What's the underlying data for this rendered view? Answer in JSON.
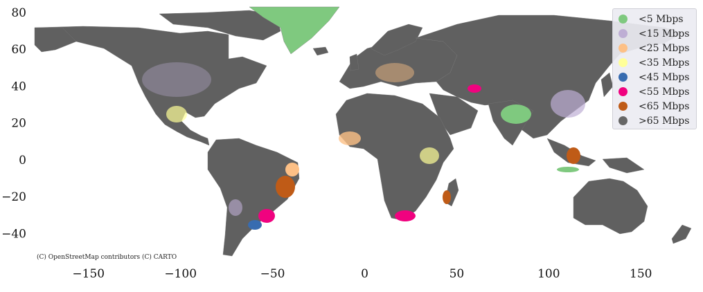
{
  "map": {
    "attribution": "(C) OpenStreetMap contributors (C) CARTO",
    "x_axis": {
      "ticks": [
        -150,
        -100,
        -50,
        0,
        50,
        100,
        150
      ],
      "labels": [
        "−150",
        "−100",
        "−50",
        "0",
        "50",
        "100",
        "150"
      ],
      "range": [
        -180,
        180
      ]
    },
    "y_axis": {
      "ticks": [
        80,
        60,
        40,
        20,
        0,
        -20,
        -40
      ],
      "labels": [
        "80",
        "60",
        "40",
        "20",
        "0",
        "−20",
        "−40"
      ],
      "range": [
        -56,
        83
      ]
    },
    "land_color": "#606060",
    "legend": {
      "placement": "top-right",
      "items": [
        {
          "label": "<5 Mbps",
          "color": "#7fc97f"
        },
        {
          "label": "<15 Mbps",
          "color": "#beaed4"
        },
        {
          "label": "<25 Mbps",
          "color": "#fdc086"
        },
        {
          "label": "<35 Mbps",
          "color": "#ffff99"
        },
        {
          "label": "<45 Mbps",
          "color": "#386cb0"
        },
        {
          "label": "<55 Mbps",
          "color": "#f0027f"
        },
        {
          "label": "<65 Mbps",
          "color": "#bf5b17"
        },
        {
          "label": ">65 Mbps",
          "color": "#666666"
        }
      ]
    }
  }
}
